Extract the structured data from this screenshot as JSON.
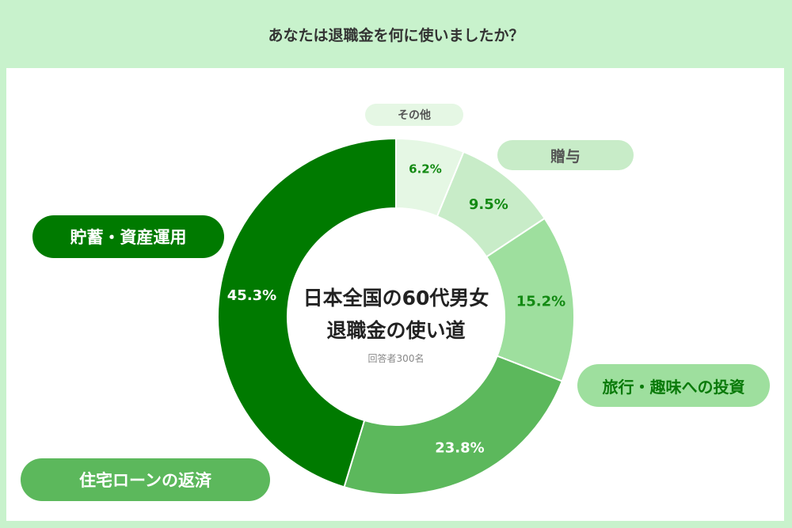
{
  "question": "あなたは退職金を何に使いましたか？",
  "center": {
    "title_line1": "日本全国の60代男女",
    "title_line2": "退職金の使い道",
    "respondents": "回答者300名"
  },
  "colors": {
    "background": "#c8f2cc",
    "panel": "#ffffff"
  },
  "chart_data": {
    "type": "pie",
    "style": "donut",
    "start": "top",
    "direction": "clockwise",
    "categories": [
      "その他",
      "贈与",
      "旅行・趣味への投資",
      "住宅ローンの返済",
      "貯蓄・資産運用"
    ],
    "values": [
      6.2,
      9.5,
      15.2,
      23.8,
      45.3
    ],
    "value_labels": [
      "6.2%",
      "9.5%",
      "15.2%",
      "23.8%",
      "45.3%"
    ],
    "slice_colors": [
      "#e5f7e4",
      "#c8ecc8",
      "#9edf9e",
      "#5cb85c",
      "#007a00"
    ],
    "value_label_colors": [
      "#138a13",
      "#138a13",
      "#138a13",
      "#ffffff",
      "#ffffff"
    ],
    "label_pill_colors": [
      "#e5f7e4",
      "#c8ecc8",
      "#9edf9e",
      "#5cb85c",
      "#007a00"
    ],
    "label_text_colors": [
      "#555555",
      "#555555",
      "#0a7a0a",
      "#ffffff",
      "#ffffff"
    ]
  }
}
